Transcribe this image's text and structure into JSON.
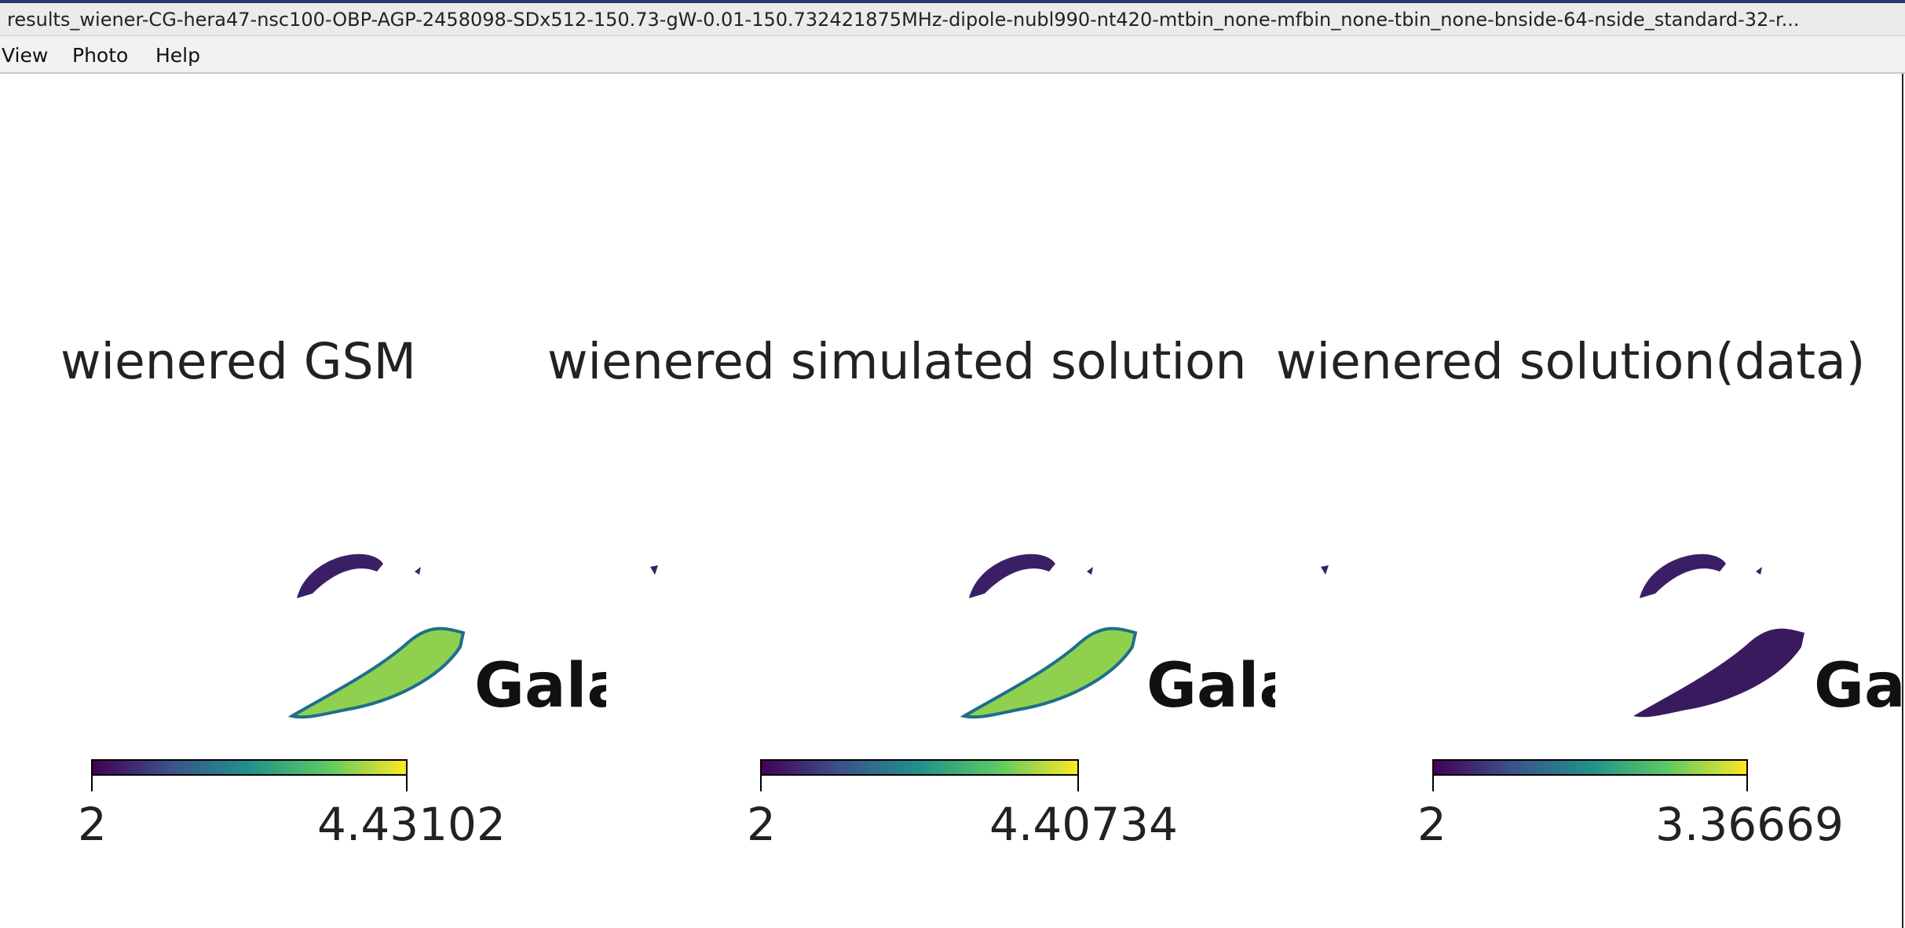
{
  "window": {
    "title": "results_wiener-CG-hera47-nsc100-OBP-AGP-2458098-SDx512-150.73-gW-0.01-150.732421875MHz-dipole-nubl990-nt420-mtbin_none-mfbin_none-tbin_none-bnside-64-nside_standard-32-r..."
  },
  "menu": {
    "view": "View",
    "photo": "Photo",
    "help": "Help"
  },
  "panels": [
    {
      "title": "wienered GSM",
      "label": "Gala",
      "cbar_min": "2",
      "cbar_max": "4.43102",
      "fill_level": "bright"
    },
    {
      "title": "wienered simulated solution",
      "label": "Gala",
      "cbar_min": "2",
      "cbar_max": "4.40734",
      "fill_level": "bright"
    },
    {
      "title": "wienered solution(data)",
      "label": "Ga",
      "cbar_min": "2",
      "cbar_max": "3.36669",
      "fill_level": "dark"
    }
  ],
  "colors": {
    "viridis_low": "#440154",
    "viridis_high": "#fde725",
    "arc_bright": "#8fd14f",
    "arc_dark": "#3a1a5e",
    "blob": "#3b1f66"
  }
}
